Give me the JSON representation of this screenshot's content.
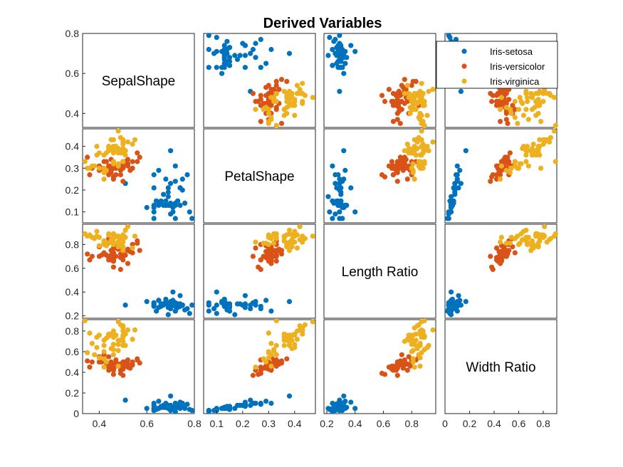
{
  "chart_data": {
    "type": "scatter",
    "title": "Derived Variables",
    "variables": [
      "SepalShape",
      "PetalShape",
      "Length Ratio",
      "Width Ratio"
    ],
    "ranges": [
      {
        "lim": [
          0.33,
          0.8
        ],
        "ticks": [
          0.4,
          0.6,
          0.8
        ],
        "tick_labels": [
          "0.4",
          "0.6",
          "0.8"
        ]
      },
      {
        "lim": [
          0.05,
          0.48
        ],
        "ticks": [
          0.1,
          0.2,
          0.3,
          0.4
        ],
        "tick_labels": [
          "0.1",
          "0.2",
          "0.3",
          "0.4"
        ]
      },
      {
        "lim": [
          0.18,
          0.97
        ],
        "ticks": [
          0.2,
          0.4,
          0.6,
          0.8
        ],
        "tick_labels": [
          "0.2",
          "0.4",
          "0.6",
          "0.8"
        ]
      },
      {
        "lim": [
          0.0,
          0.91
        ],
        "ticks": [
          0,
          0.2,
          0.4,
          0.6,
          0.8
        ],
        "tick_labels": [
          "0",
          "0.2",
          "0.4",
          "0.6",
          "0.8"
        ]
      }
    ],
    "legend_position": "top-right",
    "grid": false,
    "series": [
      {
        "name": "Iris-setosa",
        "color": "#0072BD",
        "points": [
          [
            0.7,
            0.14,
            0.29,
            0.06
          ],
          [
            0.69,
            0.13,
            0.3,
            0.06
          ],
          [
            0.73,
            0.15,
            0.27,
            0.07
          ],
          [
            0.72,
            0.13,
            0.3,
            0.06
          ],
          [
            0.72,
            0.14,
            0.28,
            0.06
          ],
          [
            0.72,
            0.24,
            0.31,
            0.1
          ],
          [
            0.74,
            0.21,
            0.3,
            0.09
          ],
          [
            0.68,
            0.13,
            0.3,
            0.06
          ],
          [
            0.66,
            0.14,
            0.3,
            0.07
          ],
          [
            0.63,
            0.07,
            0.31,
            0.03
          ],
          [
            0.74,
            0.13,
            0.28,
            0.05
          ],
          [
            0.71,
            0.13,
            0.33,
            0.06
          ],
          [
            0.63,
            0.1,
            0.29,
            0.03
          ],
          [
            0.7,
            0.09,
            0.26,
            0.03
          ],
          [
            0.69,
            0.17,
            0.21,
            0.05
          ],
          [
            0.77,
            0.27,
            0.26,
            0.09
          ],
          [
            0.72,
            0.31,
            0.24,
            0.1
          ],
          [
            0.69,
            0.21,
            0.27,
            0.07
          ],
          [
            0.67,
            0.18,
            0.3,
            0.08
          ],
          [
            0.75,
            0.2,
            0.29,
            0.08
          ],
          [
            0.63,
            0.12,
            0.31,
            0.05
          ],
          [
            0.75,
            0.25,
            0.29,
            0.1
          ],
          [
            0.78,
            0.1,
            0.22,
            0.04
          ],
          [
            0.65,
            0.29,
            0.33,
            0.12
          ],
          [
            0.71,
            0.1,
            0.4,
            0.05
          ],
          [
            0.6,
            0.12,
            0.32,
            0.05
          ],
          [
            0.68,
            0.25,
            0.32,
            0.1
          ],
          [
            0.67,
            0.13,
            0.29,
            0.06
          ],
          [
            0.65,
            0.14,
            0.27,
            0.05
          ],
          [
            0.68,
            0.13,
            0.34,
            0.06
          ],
          [
            0.65,
            0.13,
            0.33,
            0.05
          ],
          [
            0.63,
            0.27,
            0.28,
            0.1
          ],
          [
            0.79,
            0.07,
            0.29,
            0.03
          ],
          [
            0.76,
            0.14,
            0.25,
            0.05
          ],
          [
            0.63,
            0.13,
            0.3,
            0.05
          ],
          [
            0.64,
            0.15,
            0.24,
            0.04
          ],
          [
            0.64,
            0.15,
            0.24,
            0.05
          ],
          [
            0.72,
            0.07,
            0.24,
            0.02
          ],
          [
            0.68,
            0.15,
            0.3,
            0.06
          ],
          [
            0.69,
            0.19,
            0.3,
            0.08
          ],
          [
            0.7,
            0.23,
            0.26,
            0.08
          ],
          [
            0.51,
            0.23,
            0.29,
            0.13
          ],
          [
            0.73,
            0.15,
            0.3,
            0.06
          ],
          [
            0.7,
            0.38,
            0.32,
            0.17
          ],
          [
            0.74,
            0.21,
            0.37,
            0.11
          ],
          [
            0.63,
            0.21,
            0.29,
            0.08
          ],
          [
            0.71,
            0.12,
            0.32,
            0.05
          ],
          [
            0.7,
            0.13,
            0.3,
            0.06
          ],
          [
            0.7,
            0.13,
            0.28,
            0.05
          ],
          [
            0.66,
            0.15,
            0.28,
            0.06
          ]
        ]
      },
      {
        "name": "Iris-versicolor",
        "color": "#D95319",
        "points": [
          [
            0.46,
            0.3,
            0.67,
            0.44
          ],
          [
            0.5,
            0.33,
            0.7,
            0.47
          ],
          [
            0.45,
            0.31,
            0.71,
            0.48
          ],
          [
            0.42,
            0.33,
            0.73,
            0.57
          ],
          [
            0.43,
            0.33,
            0.71,
            0.49
          ],
          [
            0.49,
            0.29,
            0.79,
            0.46
          ],
          [
            0.52,
            0.34,
            0.76,
            0.48
          ],
          [
            0.49,
            0.31,
            0.69,
            0.42
          ],
          [
            0.44,
            0.3,
            0.7,
            0.45
          ],
          [
            0.52,
            0.32,
            0.75,
            0.52
          ],
          [
            0.4,
            0.29,
            0.7,
            0.5
          ],
          [
            0.51,
            0.33,
            0.71,
            0.5
          ],
          [
            0.36,
            0.27,
            0.67,
            0.45
          ],
          [
            0.47,
            0.3,
            0.77,
            0.48
          ],
          [
            0.52,
            0.31,
            0.64,
            0.45
          ],
          [
            0.46,
            0.31,
            0.66,
            0.45
          ],
          [
            0.54,
            0.33,
            0.8,
            0.5
          ],
          [
            0.5,
            0.24,
            0.7,
            0.37
          ],
          [
            0.35,
            0.35,
            0.72,
            0.51
          ],
          [
            0.45,
            0.28,
            0.7,
            0.44
          ],
          [
            0.56,
            0.37,
            0.81,
            0.53
          ],
          [
            0.46,
            0.33,
            0.66,
            0.46
          ],
          [
            0.4,
            0.31,
            0.78,
            0.55
          ],
          [
            0.46,
            0.25,
            0.77,
            0.42
          ],
          [
            0.45,
            0.3,
            0.67,
            0.45
          ],
          [
            0.45,
            0.31,
            0.67,
            0.46
          ],
          [
            0.41,
            0.3,
            0.71,
            0.5
          ],
          [
            0.45,
            0.34,
            0.75,
            0.5
          ],
          [
            0.5,
            0.33,
            0.75,
            0.5
          ],
          [
            0.46,
            0.26,
            0.61,
            0.38
          ],
          [
            0.44,
            0.29,
            0.69,
            0.45
          ],
          [
            0.44,
            0.27,
            0.67,
            0.42
          ],
          [
            0.5,
            0.31,
            0.67,
            0.43
          ],
          [
            0.44,
            0.31,
            0.85,
            0.55
          ],
          [
            0.56,
            0.33,
            0.83,
            0.52
          ],
          [
            0.57,
            0.35,
            0.75,
            0.49
          ],
          [
            0.46,
            0.32,
            0.7,
            0.48
          ],
          [
            0.37,
            0.3,
            0.7,
            0.5
          ],
          [
            0.54,
            0.3,
            0.73,
            0.47
          ],
          [
            0.46,
            0.3,
            0.73,
            0.48
          ],
          [
            0.47,
            0.27,
            0.8,
            0.52
          ],
          [
            0.5,
            0.3,
            0.75,
            0.48
          ],
          [
            0.45,
            0.29,
            0.69,
            0.46
          ],
          [
            0.46,
            0.3,
            0.66,
            0.43
          ],
          [
            0.48,
            0.31,
            0.76,
            0.48
          ],
          [
            0.53,
            0.29,
            0.74,
            0.44
          ],
          [
            0.5,
            0.31,
            0.74,
            0.45
          ],
          [
            0.47,
            0.3,
            0.7,
            0.46
          ],
          [
            0.49,
            0.27,
            0.59,
            0.39
          ],
          [
            0.49,
            0.31,
            0.72,
            0.48
          ]
        ]
      },
      {
        "name": "Iris-virginica",
        "color": "#EDB120",
        "points": [
          [
            0.52,
            0.42,
            0.95,
            0.81
          ],
          [
            0.5,
            0.37,
            0.88,
            0.74
          ],
          [
            0.42,
            0.36,
            0.83,
            0.71
          ],
          [
            0.46,
            0.32,
            0.89,
            0.62
          ],
          [
            0.46,
            0.38,
            0.89,
            0.74
          ],
          [
            0.39,
            0.36,
            0.87,
            0.74
          ],
          [
            0.51,
            0.38,
            0.92,
            0.66
          ],
          [
            0.4,
            0.3,
            0.86,
            0.54
          ],
          [
            0.37,
            0.31,
            0.86,
            0.68
          ],
          [
            0.5,
            0.42,
            0.84,
            0.85
          ],
          [
            0.5,
            0.39,
            0.78,
            0.76
          ],
          [
            0.42,
            0.36,
            0.83,
            0.66
          ],
          [
            0.44,
            0.38,
            0.81,
            0.76
          ],
          [
            0.44,
            0.4,
            0.88,
            0.77
          ],
          [
            0.48,
            0.47,
            0.87,
            0.89
          ],
          [
            0.5,
            0.43,
            0.82,
            0.83
          ],
          [
            0.46,
            0.33,
            0.85,
            0.57
          ],
          [
            0.5,
            0.33,
            0.86,
            0.66
          ],
          [
            0.34,
            0.33,
            0.89,
            0.9
          ],
          [
            0.36,
            0.3,
            0.88,
            0.78
          ],
          [
            0.46,
            0.4,
            0.82,
            0.67
          ],
          [
            0.5,
            0.41,
            0.88,
            0.8
          ],
          [
            0.35,
            0.3,
            0.87,
            0.59
          ],
          [
            0.43,
            0.37,
            0.79,
            0.73
          ],
          [
            0.48,
            0.38,
            0.82,
            0.67
          ],
          [
            0.42,
            0.3,
            0.8,
            0.6
          ],
          [
            0.48,
            0.37,
            0.78,
            0.71
          ],
          [
            0.49,
            0.37,
            0.8,
            0.71
          ],
          [
            0.44,
            0.38,
            0.89,
            0.75
          ],
          [
            0.42,
            0.28,
            0.81,
            0.53
          ],
          [
            0.38,
            0.31,
            0.85,
            0.57
          ],
          [
            0.48,
            0.31,
            0.86,
            0.46
          ],
          [
            0.44,
            0.39,
            0.88,
            0.76
          ],
          [
            0.43,
            0.29,
            0.81,
            0.5
          ],
          [
            0.42,
            0.25,
            0.82,
            0.45
          ],
          [
            0.39,
            0.4,
            0.91,
            0.64
          ],
          [
            0.54,
            0.41,
            0.77,
            0.72
          ],
          [
            0.48,
            0.32,
            0.81,
            0.61
          ],
          [
            0.5,
            0.38,
            0.75,
            0.7
          ],
          [
            0.45,
            0.39,
            0.84,
            0.63
          ],
          [
            0.46,
            0.43,
            0.86,
            0.8
          ],
          [
            0.48,
            0.39,
            0.81,
            0.71
          ],
          [
            0.46,
            0.37,
            0.88,
            0.74
          ],
          [
            0.47,
            0.4,
            0.87,
            0.76
          ],
          [
            0.49,
            0.44,
            0.85,
            0.86
          ],
          [
            0.45,
            0.43,
            0.83,
            0.77
          ],
          [
            0.4,
            0.37,
            0.79,
            0.76
          ],
          [
            0.46,
            0.38,
            0.8,
            0.67
          ],
          [
            0.55,
            0.43,
            0.87,
            0.81
          ],
          [
            0.51,
            0.36,
            0.86,
            0.77
          ]
        ]
      }
    ]
  }
}
